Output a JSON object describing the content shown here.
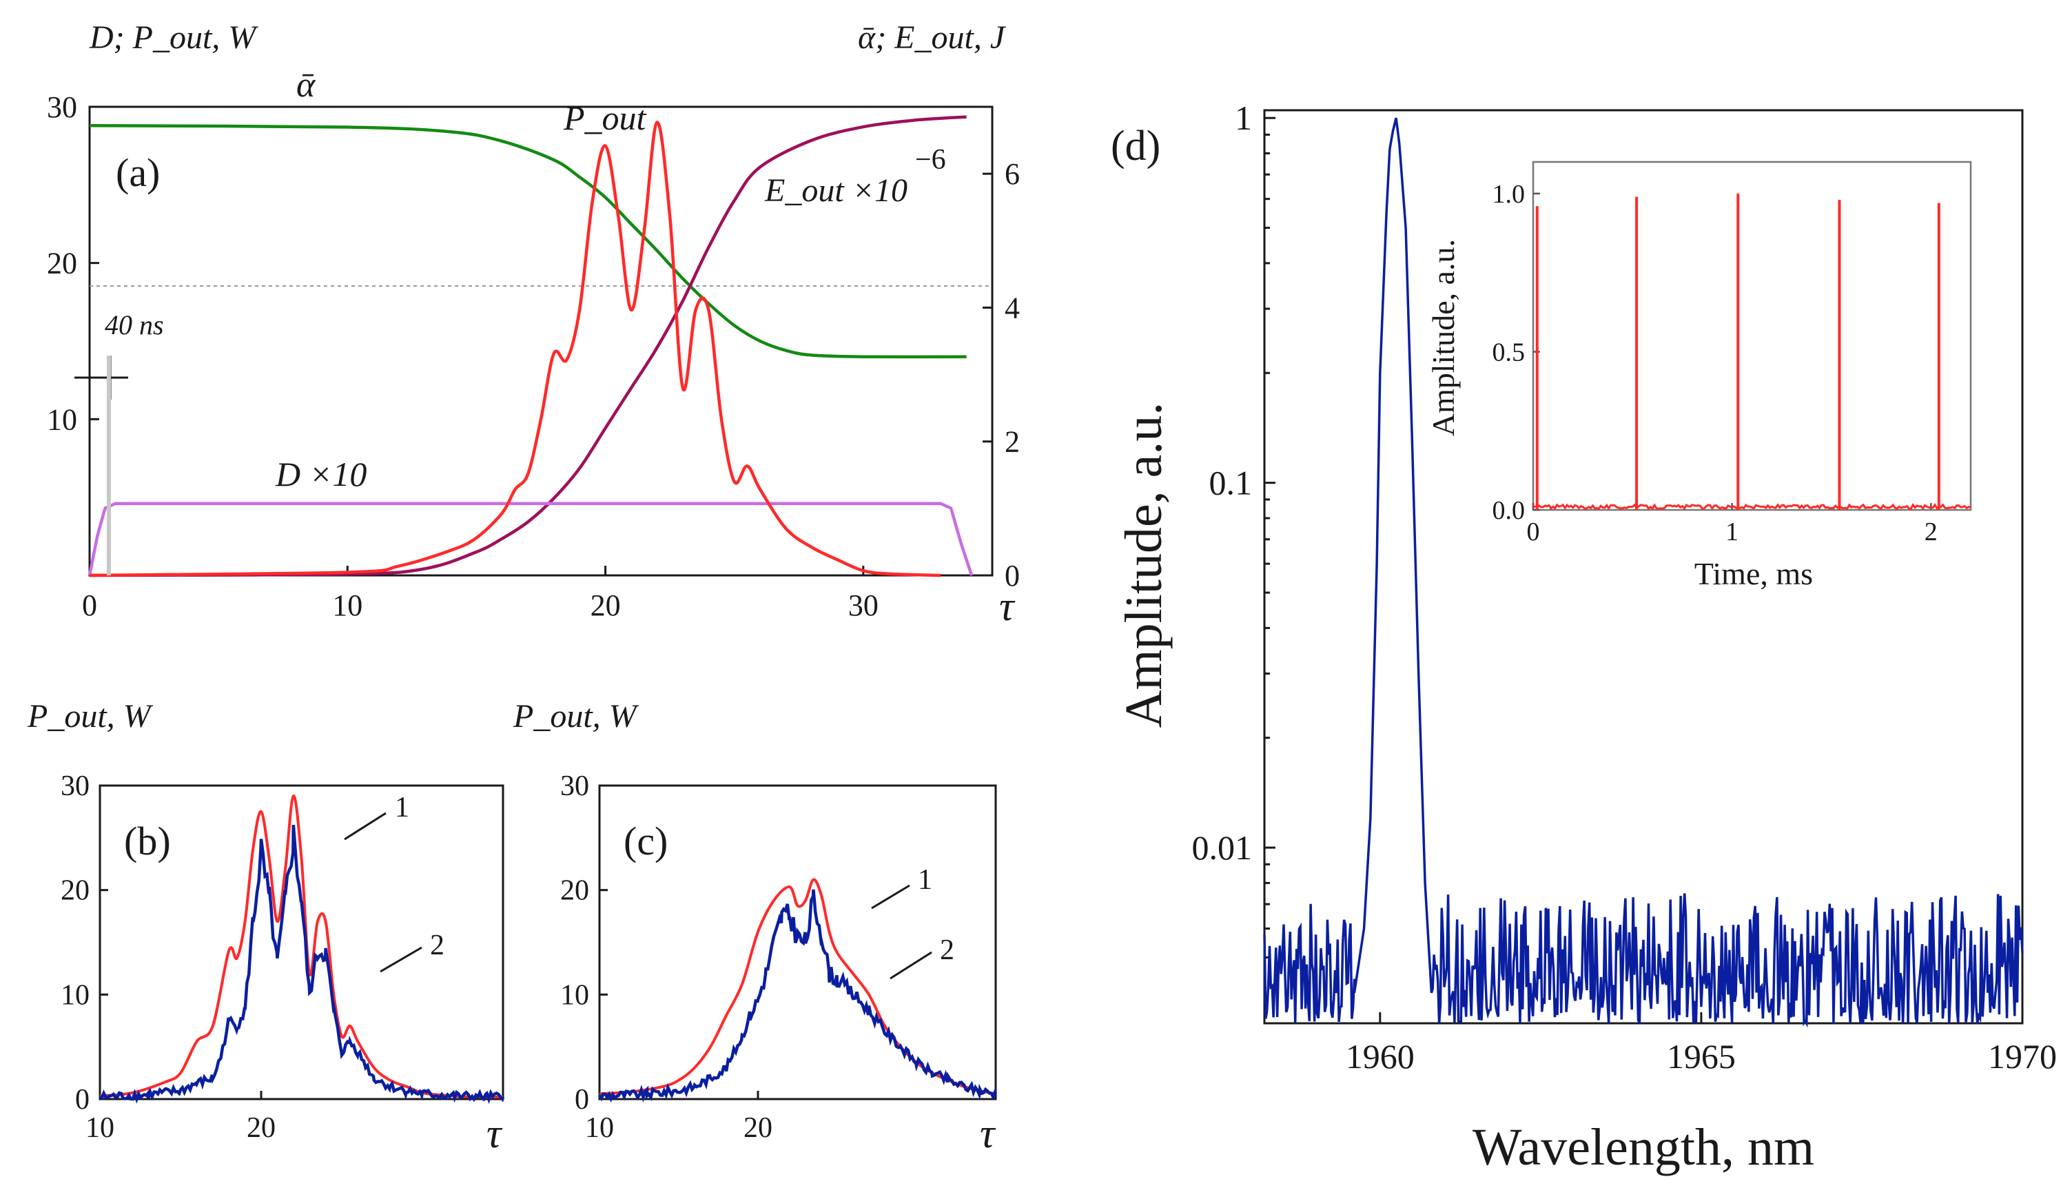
{
  "figure": {
    "panels": [
      "(a)",
      "(b)",
      "(c)",
      "(d)"
    ]
  },
  "chart_data": [
    {
      "panel": "(a)",
      "type": "line",
      "left_axis_label": "D; P_out, W",
      "right_axis_label": "ᾱ; E_out, J",
      "xlabel": "τ",
      "xlim": [
        0,
        35
      ],
      "ylim_left": [
        0,
        30
      ],
      "ylim_right": [
        0,
        7
      ],
      "xticks": [
        0,
        10,
        20,
        30
      ],
      "yticks_left": [
        10,
        20,
        30
      ],
      "yticks_right": [
        0,
        2,
        4,
        6
      ],
      "annotations": {
        "alpha": "ᾱ",
        "pout": "P_out",
        "eout": "E_out ×10",
        "eout_exp": "−6",
        "d": "D ×10",
        "ns": "40 ns"
      },
      "colors": {
        "alpha": "#138a13",
        "pout": "#ff2a2a",
        "eout": "#a0105a",
        "d": "#c86de6"
      },
      "series": [
        {
          "name": "alpha",
          "axis": "left",
          "x": [
            0,
            10,
            14,
            16,
            18,
            19,
            20,
            21,
            22,
            23,
            24,
            25,
            26,
            27,
            28,
            30,
            34
          ],
          "values": [
            28.8,
            28.7,
            28.4,
            27.8,
            26.6,
            25.5,
            24.2,
            22.5,
            20.8,
            19.0,
            17.4,
            16.0,
            15.0,
            14.4,
            14.1,
            14.0,
            14.0
          ]
        },
        {
          "name": "E_out x10^-6",
          "axis": "right",
          "x": [
            0,
            10,
            13,
            15,
            16,
            17,
            18,
            19,
            20,
            21,
            22,
            23,
            24,
            25,
            26,
            28,
            30,
            32,
            34
          ],
          "values": [
            0,
            0.02,
            0.1,
            0.35,
            0.55,
            0.8,
            1.15,
            1.6,
            2.2,
            2.8,
            3.4,
            4.1,
            4.9,
            5.6,
            6.1,
            6.5,
            6.7,
            6.8,
            6.85
          ]
        },
        {
          "name": "D x10",
          "axis": "left",
          "x": [
            0,
            0.3,
            0.6,
            1.0,
            33.0,
            33.4,
            33.8,
            34.2
          ],
          "values": [
            0,
            2.5,
            4.3,
            4.6,
            4.6,
            4.3,
            2.0,
            0
          ]
        },
        {
          "name": "P_out",
          "axis": "left",
          "x": [
            0,
            10,
            12,
            14,
            15,
            16,
            16.5,
            17,
            17.5,
            18,
            18.5,
            19,
            19.5,
            20,
            20.5,
            21,
            21.5,
            22,
            22.5,
            23,
            23.5,
            24,
            24.5,
            25,
            25.5,
            26,
            27,
            28,
            29,
            30,
            31,
            33
          ],
          "values": [
            0,
            0.2,
            0.6,
            1.6,
            2.4,
            4.0,
            5.5,
            6.5,
            10,
            14.2,
            13.8,
            17,
            24,
            27.5,
            23,
            17,
            22,
            29,
            23,
            12,
            17,
            17,
            10,
            6,
            7,
            5.5,
            3,
            1.8,
            1.0,
            0.3,
            0.1,
            0
          ]
        }
      ]
    },
    {
      "panel": "(b)",
      "type": "line",
      "ylabel": "P_out, W",
      "xlabel": "τ",
      "xlim": [
        10,
        35
      ],
      "ylim": [
        0,
        30
      ],
      "xticks": [
        10,
        20
      ],
      "yticks": [
        0,
        10,
        20,
        30
      ],
      "labels": [
        "1",
        "2"
      ],
      "series": [
        {
          "name": "1",
          "color": "#ff2a2a",
          "x": [
            10,
            12,
            14,
            15,
            16,
            17,
            18,
            18.5,
            19,
            19.5,
            20,
            20.5,
            21,
            21.5,
            22,
            22.5,
            23,
            23.5,
            24,
            24.5,
            25,
            25.5,
            26,
            27,
            28,
            29,
            30,
            31,
            32,
            33,
            34,
            35
          ],
          "values": [
            0.3,
            0.6,
            1.6,
            2.5,
            5.5,
            7,
            14.2,
            13.5,
            17,
            24,
            27.5,
            23,
            17,
            22,
            29,
            23,
            12,
            17,
            17,
            10,
            6,
            7,
            5.5,
            3,
            1.8,
            1.2,
            0.6,
            0.4,
            0.3,
            0.2,
            0.2,
            0.2
          ]
        },
        {
          "name": "2",
          "color": "#0a1fa0",
          "x": [
            10,
            13,
            15,
            16,
            17,
            17.5,
            18,
            18.5,
            19,
            19.5,
            20,
            20.5,
            21,
            21.5,
            22,
            22.5,
            23,
            23.5,
            24,
            24.5,
            25,
            25.5,
            26,
            27,
            28,
            29,
            30,
            32,
            34,
            35
          ],
          "values": [
            0.2,
            0.4,
            0.8,
            1.5,
            2,
            4,
            7.5,
            7,
            8.5,
            17,
            23.5,
            19,
            13,
            19,
            25,
            19,
            10,
            14,
            14,
            8.5,
            4.5,
            5.5,
            4.5,
            2,
            1.2,
            0.8,
            0.5,
            0.3,
            0.2,
            0.2
          ]
        }
      ]
    },
    {
      "panel": "(c)",
      "type": "line",
      "ylabel": "P_out, W",
      "xlabel": "τ",
      "xlim": [
        10,
        35
      ],
      "ylim": [
        0,
        30
      ],
      "xticks": [
        10,
        20
      ],
      "yticks": [
        0,
        10,
        20,
        30
      ],
      "labels": [
        "1",
        "2"
      ],
      "series": [
        {
          "name": "1",
          "color": "#ff2a2a",
          "x": [
            10,
            12,
            14,
            15,
            16,
            17,
            18,
            19,
            20,
            21,
            22,
            22.5,
            23,
            23.5,
            24,
            24.5,
            25,
            26,
            27,
            28,
            29,
            30,
            31,
            32,
            33,
            34,
            35
          ],
          "values": [
            0.5,
            0.7,
            1.2,
            1.8,
            3,
            5,
            8,
            11,
            16,
            19,
            20.3,
            18.5,
            19,
            21,
            19.5,
            16,
            14,
            12,
            10,
            7,
            5,
            3.5,
            2.5,
            1.8,
            1.2,
            0.8,
            0.5
          ]
        },
        {
          "name": "2",
          "color": "#0a1fa0",
          "x": [
            10,
            13,
            15,
            16,
            17,
            18,
            19,
            19.5,
            20,
            20.5,
            21,
            21.5,
            22,
            22.5,
            23,
            23.5,
            24,
            24.5,
            25,
            26,
            27,
            28,
            29,
            30,
            31,
            32,
            33,
            34,
            35
          ],
          "values": [
            0.3,
            0.5,
            0.8,
            1.2,
            2,
            3,
            6,
            8,
            9.5,
            12,
            15,
            17.5,
            17.5,
            15.5,
            15,
            19,
            16,
            12,
            11.5,
            10,
            8.5,
            6.5,
            5,
            3.5,
            2.5,
            1.8,
            1.2,
            0.8,
            0.5
          ]
        }
      ]
    },
    {
      "panel": "(d)",
      "type": "line",
      "xlabel": "Wavelength, nm",
      "ylabel": "Amplitude, a.u.",
      "yscale": "log",
      "xlim": [
        1958.2,
        1970
      ],
      "ylim": [
        0.0033,
        1.05
      ],
      "xticks": [
        1960,
        1965,
        1970
      ],
      "ytick_labels": [
        "1",
        "0.1",
        "0.01"
      ],
      "yticks": [
        1,
        0.1,
        0.01
      ],
      "series": [
        {
          "name": "spectrum",
          "color": "#0a1fa0",
          "x": [
            1959.6,
            1959.75,
            1959.85,
            1959.95,
            1960.0,
            1960.1,
            1960.15,
            1960.2,
            1960.25,
            1960.3,
            1960.4,
            1960.5,
            1960.6,
            1960.7,
            1960.8
          ],
          "values": [
            0.004,
            0.006,
            0.012,
            0.06,
            0.2,
            0.55,
            0.82,
            0.92,
            1.0,
            0.85,
            0.5,
            0.13,
            0.03,
            0.008,
            0.004
          ],
          "noise_floor": [
            0.0033,
            0.0075
          ]
        }
      ],
      "inset": {
        "type": "line",
        "xlabel": "Time, ms",
        "ylabel": "Amplitude, a.u.",
        "xlim": [
          0,
          2.2
        ],
        "ylim": [
          0,
          1.1
        ],
        "xticks": [
          0,
          1,
          2
        ],
        "yticks": [
          0.0,
          0.5,
          1.0
        ],
        "xtick_labels": [
          "0",
          "1",
          "2"
        ],
        "ytick_labels": [
          "0.0",
          "0.5",
          "1.0"
        ],
        "color": "#ff2a2a",
        "pulse_times": [
          0.02,
          0.52,
          1.03,
          1.54,
          2.04
        ],
        "pulse_heights": [
          0.96,
          0.99,
          1.0,
          0.98,
          0.97
        ]
      }
    }
  ]
}
